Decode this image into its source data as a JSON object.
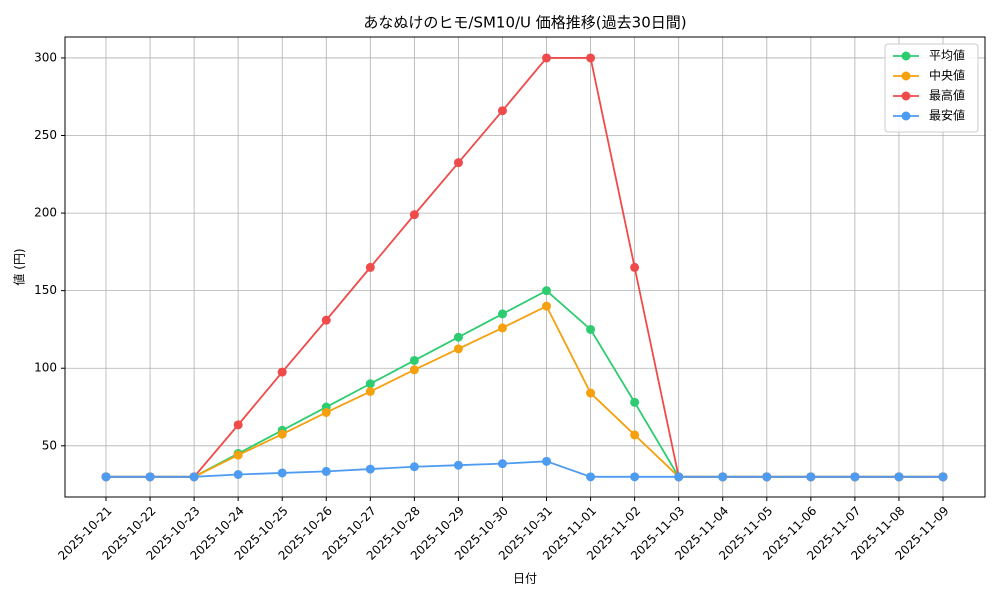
{
  "chart_data": {
    "type": "line",
    "title": "あなぬけのヒモ/SM10/U 価格推移(過去30日間)",
    "x_label": "日付",
    "y_label": "値 (円)",
    "x": [
      "2025-10-21",
      "2025-10-22",
      "2025-10-23",
      "2025-10-24",
      "2025-10-25",
      "2025-10-26",
      "2025-10-27",
      "2025-10-28",
      "2025-10-29",
      "2025-10-30",
      "2025-10-31",
      "2025-11-01",
      "2025-11-02",
      "2025-11-03",
      "2025-11-04",
      "2025-11-05",
      "2025-11-06",
      "2025-11-07",
      "2025-11-08",
      "2025-11-09"
    ],
    "series": [
      {
        "name": "平均値",
        "color": "#2ecc71",
        "values": [
          30,
          30,
          30,
          45,
          60,
          75,
          90,
          105,
          120,
          135,
          150,
          125,
          78,
          30,
          30,
          30,
          30,
          30,
          30,
          30
        ]
      },
      {
        "name": "中央値",
        "color": "#f5a00f",
        "values": [
          30,
          30,
          30,
          44,
          57.5,
          71.5,
          85,
          99,
          112.5,
          126,
          140,
          84,
          57,
          30,
          30,
          30,
          30,
          30,
          30,
          30
        ]
      },
      {
        "name": "最高値",
        "color": "#ef4b4b",
        "values": [
          30,
          30,
          30,
          63.5,
          97.5,
          131,
          165,
          199,
          232.5,
          266,
          300,
          300,
          165,
          30,
          30,
          30,
          30,
          30,
          30,
          30
        ]
      },
      {
        "name": "最安値",
        "color": "#4d9cf2",
        "values": [
          30,
          30,
          30,
          31.5,
          32.5,
          33.5,
          35,
          36.5,
          37.5,
          38.5,
          40,
          30,
          30,
          30,
          30,
          30,
          30,
          30,
          30,
          30
        ]
      }
    ],
    "ylim": [
      17,
      313.5
    ],
    "yticks": [
      50,
      100,
      150,
      200,
      250,
      300
    ],
    "grid": true,
    "legend": "upper right"
  }
}
